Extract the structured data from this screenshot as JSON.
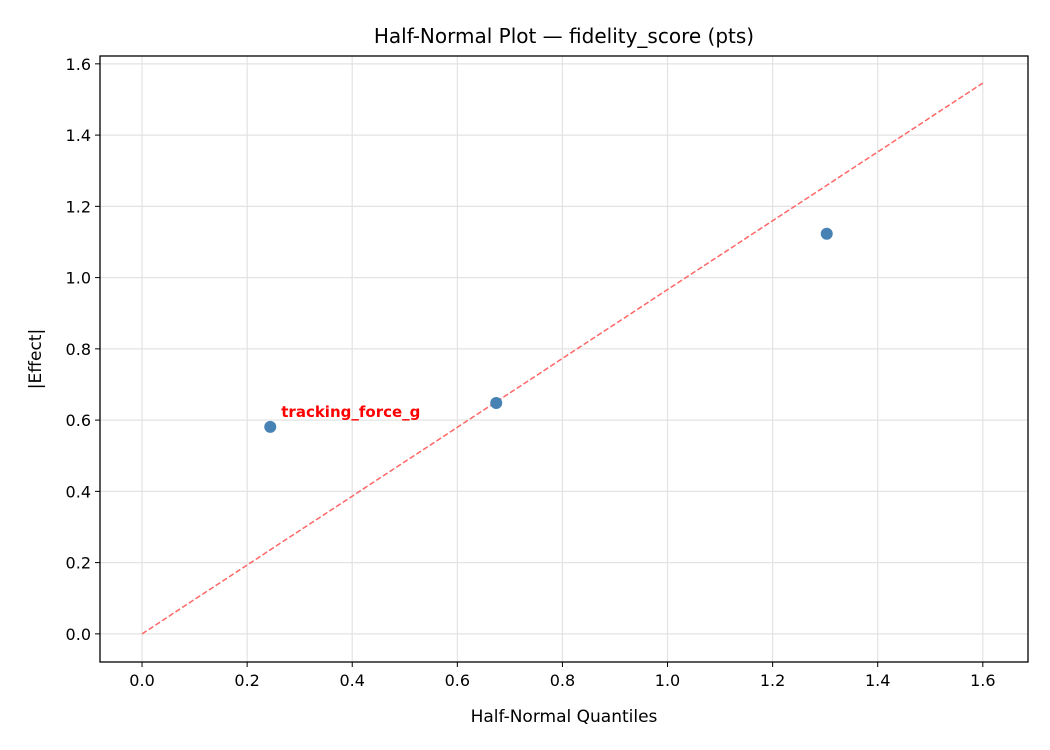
{
  "chart_data": {
    "type": "scatter",
    "title": "Half-Normal Plot — fidelity_score (pts)",
    "xlabel": "Half-Normal Quantiles",
    "ylabel": "|Effect|",
    "xlim": [
      -0.08,
      1.686
    ],
    "ylim": [
      -0.079,
      1.622
    ],
    "grid": true,
    "xticks": [
      "0.0",
      "0.2",
      "0.4",
      "0.6",
      "0.8",
      "1.0",
      "1.2",
      "1.4",
      "1.6"
    ],
    "yticks": [
      "0.0",
      "0.2",
      "0.4",
      "0.6",
      "0.8",
      "1.0",
      "1.2",
      "1.4",
      "1.6"
    ],
    "points": [
      {
        "x": 0.244,
        "y": 0.581
      },
      {
        "x": 0.674,
        "y": 0.648
      },
      {
        "x": 1.303,
        "y": 1.123
      }
    ],
    "point_color": "#4682b4",
    "reference_line": {
      "x": [
        0,
        1.6
      ],
      "y": [
        0,
        1.546
      ],
      "color": "#ff6666",
      "style": "dashed"
    },
    "annotations": [
      {
        "text": "tracking_force_g",
        "x": 0.244,
        "y": 0.581,
        "color": "#ff0000"
      }
    ]
  }
}
